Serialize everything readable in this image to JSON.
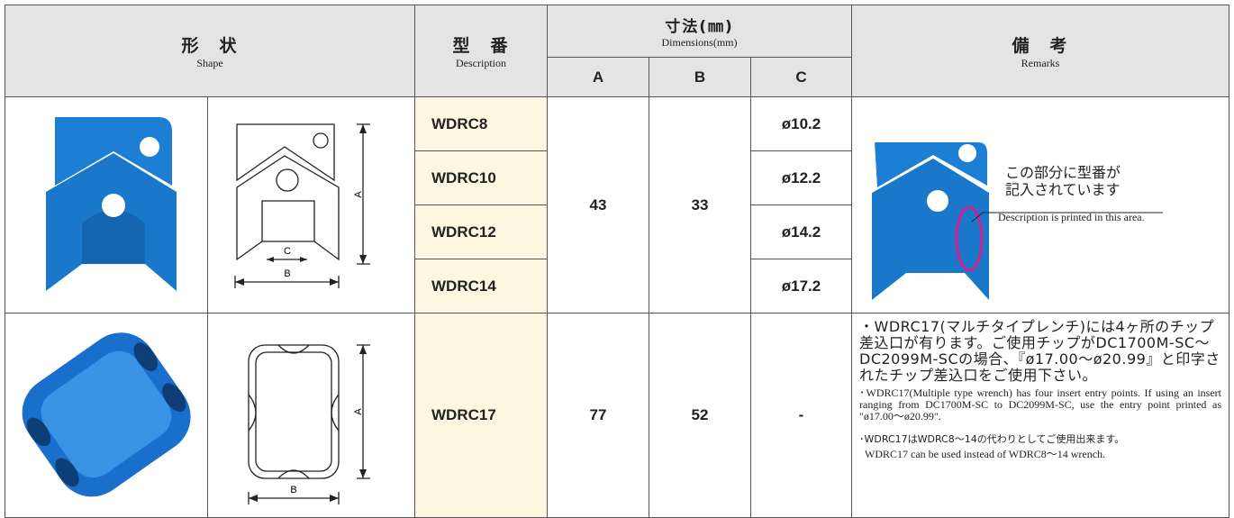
{
  "header": {
    "shape": {
      "ja": "形　状",
      "en": "Shape"
    },
    "description": {
      "ja": "型　番",
      "en": "Description"
    },
    "dimensions": {
      "ja": "寸法(㎜)",
      "en": "Dimensions(mm)",
      "columns": [
        "A",
        "B",
        "C"
      ]
    },
    "remarks": {
      "ja": "備　考",
      "en": "Remarks"
    }
  },
  "rows": [
    {
      "drawing_labels": [
        "A",
        "C",
        "B"
      ],
      "descriptions": [
        "WDRC8",
        "WDRC10",
        "WDRC12",
        "WDRC14"
      ],
      "A": 43,
      "B": 33,
      "C": [
        "ø10.2",
        "ø12.2",
        "ø14.2",
        "ø17.2"
      ],
      "remarks": {
        "callout_ja": [
          "この部分に型番が",
          "記入されています"
        ],
        "callout_en": "Description is printed in this area."
      }
    },
    {
      "drawing_labels": [
        "A",
        "B"
      ],
      "descriptions": [
        "WDRC17"
      ],
      "A": 77,
      "B": 52,
      "C": [
        "-"
      ],
      "remarks": {
        "ja": "・WDRC17(マルチタイプレンチ)には4ヶ所のチップ差込口が有ります。ご使用チップがDC1700M-SC～DC2099M-SCの場合、『ø17.00～ø20.99』と印字されたチップ差込口をご使用下さい。",
        "en": "･WDRC17(Multiple type wrench) has four insert entry points. If using an insert ranging from DC1700M-SC to DC2099M-SC, use the entry point printed as \"ø17.00～ø20.99\".",
        "note_ja": "･WDRC17はWDRC8～14の代わりとしてご使用出来ます。",
        "note_en": "WDRC17 can be used instead of WDRC8～14 wrench."
      }
    }
  ]
}
